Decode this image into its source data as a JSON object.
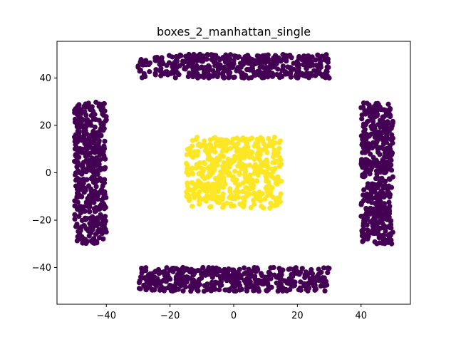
{
  "chart_data": {
    "type": "scatter",
    "title": "boxes_2_manhattan_single",
    "xlabel": "",
    "ylabel": "",
    "xlim": [
      -55.5,
      55.5
    ],
    "ylim": [
      -55.5,
      55.5
    ],
    "xticks": [
      -40,
      -20,
      0,
      20,
      40
    ],
    "yticks": [
      -40,
      -20,
      0,
      20,
      40
    ],
    "xtick_labels": [
      "−40",
      "−20",
      "0",
      "20",
      "40"
    ],
    "ytick_labels": [
      "−40",
      "−20",
      "0",
      "20",
      "40"
    ],
    "grid": false,
    "legend": "none",
    "colors": {
      "cluster_0": "#440154",
      "cluster_1": "#fde725"
    },
    "clusters": [
      {
        "cluster": 0,
        "color": "#440154",
        "region": "top",
        "x_range": [
          -30,
          30
        ],
        "y_range": [
          40,
          50
        ],
        "points": 450
      },
      {
        "cluster": 0,
        "color": "#440154",
        "region": "bottom",
        "x_range": [
          -30,
          30
        ],
        "y_range": [
          -50,
          -40
        ],
        "points": 450
      },
      {
        "cluster": 0,
        "color": "#440154",
        "region": "left",
        "x_range": [
          -50,
          -40
        ],
        "y_range": [
          -30,
          30
        ],
        "points": 450
      },
      {
        "cluster": 0,
        "color": "#440154",
        "region": "right",
        "x_range": [
          40,
          50
        ],
        "y_range": [
          -30,
          30
        ],
        "points": 450
      },
      {
        "cluster": 1,
        "color": "#fde725",
        "region": "center",
        "x_range": [
          -15,
          15
        ],
        "y_range": [
          -15,
          15
        ],
        "points": 500
      }
    ]
  }
}
